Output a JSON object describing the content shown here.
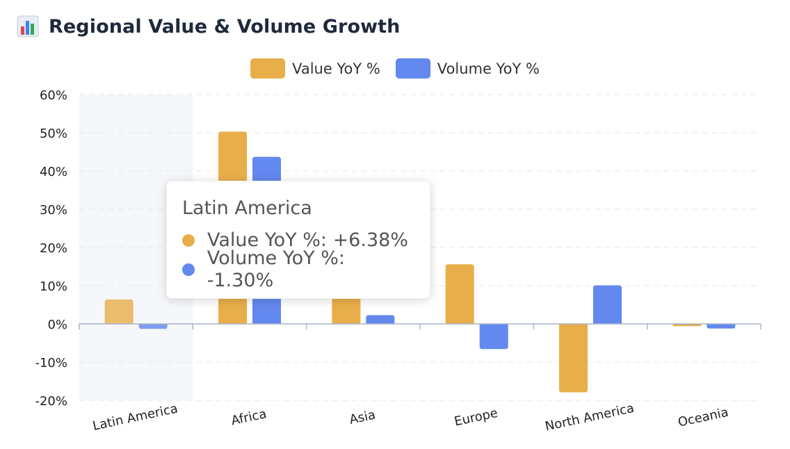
{
  "title": "Regional Value & Volume Growth",
  "title_icon": "bar-chart-icon",
  "colors": {
    "value": "#E8AE4A",
    "volume": "#6388EE",
    "highlight_band": "#f5f7fb",
    "grid": "#e5e7eb",
    "axis": "#a8b4c8"
  },
  "legend": {
    "value_label": "Value YoY %",
    "volume_label": "Volume YoY %"
  },
  "tooltip": {
    "title": "Latin America",
    "rows": [
      {
        "label": "Value YoY %: +6.38%"
      },
      {
        "label": "Volume YoY %: -1.30%"
      }
    ]
  },
  "chart_data": {
    "type": "bar",
    "title": "Regional Value & Volume Growth",
    "categories": [
      "Latin America",
      "Africa",
      "Asia",
      "Europe",
      "North America",
      "Oceania"
    ],
    "series": [
      {
        "name": "Value YoY %",
        "values": [
          6.38,
          50.3,
          16.5,
          15.6,
          -17.9,
          -0.6
        ]
      },
      {
        "name": "Volume YoY %",
        "values": [
          -1.3,
          43.7,
          2.3,
          -6.6,
          10.1,
          -1.2
        ]
      }
    ],
    "ylim": [
      -20,
      60
    ],
    "yticks": [
      60,
      50,
      40,
      30,
      20,
      10,
      0,
      -10,
      -20
    ],
    "ytick_labels": [
      "60%",
      "50%",
      "40%",
      "30%",
      "20%",
      "10%",
      "0%",
      "-10%",
      "-20%"
    ],
    "xlabel": "",
    "ylabel": "",
    "grid": true,
    "legend_position": "top-center",
    "highlighted_category": "Latin America"
  }
}
